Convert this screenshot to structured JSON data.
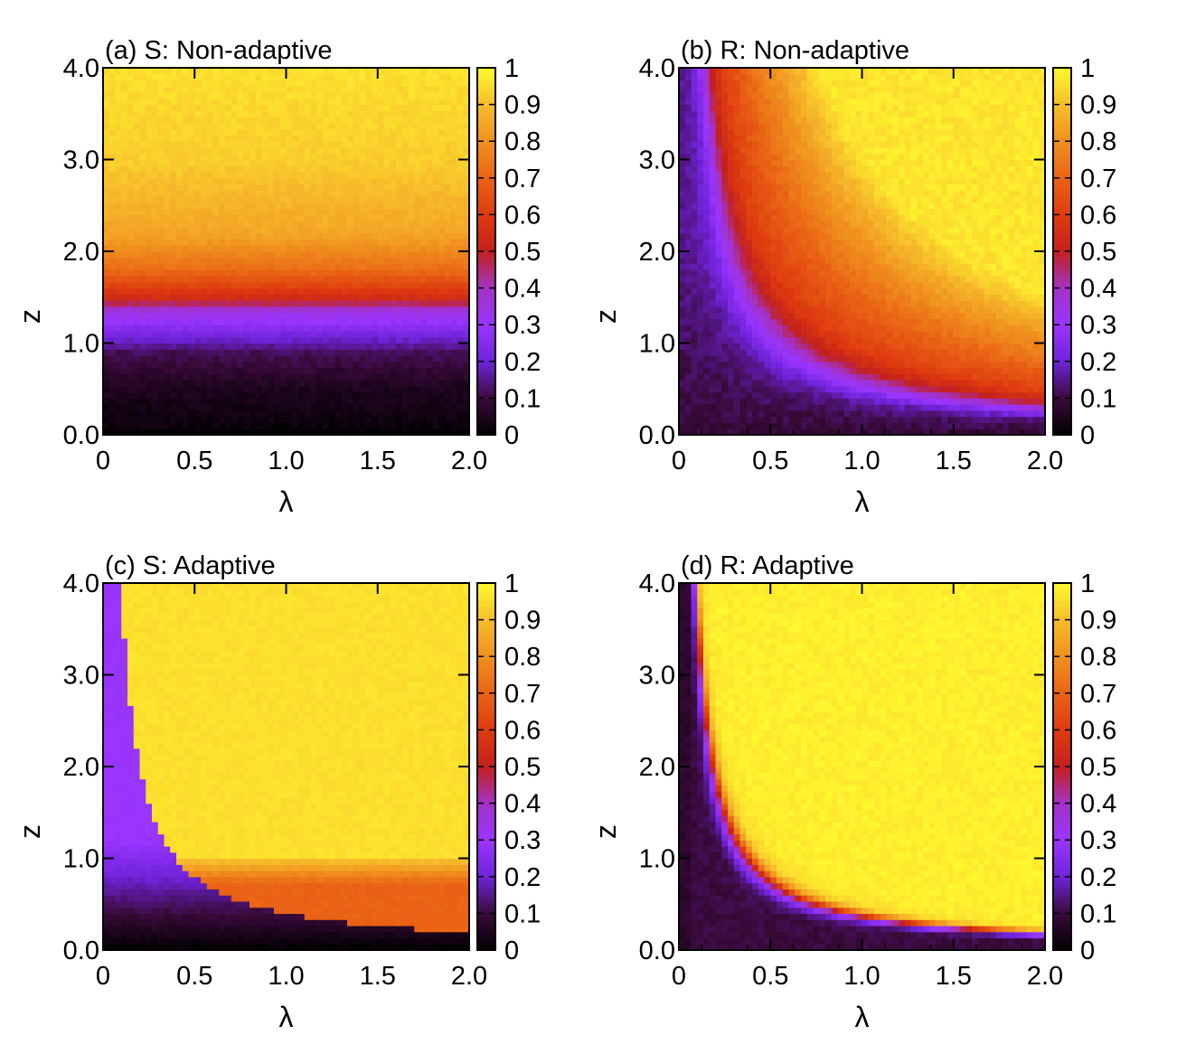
{
  "chart_data": [
    {
      "type": "heatmap",
      "title": "(a) S: Non-adaptive",
      "xlabel": "λ",
      "ylabel": "z",
      "xlim": [
        0,
        2.0
      ],
      "ylim": [
        0,
        4.0
      ],
      "xticks": [
        "0",
        "0.5",
        "1.0",
        "1.5",
        "2.0"
      ],
      "yticks": [
        "0.0",
        "1.0",
        "2.0",
        "3.0",
        "4.0"
      ],
      "colorbar": {
        "min": 0,
        "max": 1,
        "ticks": [
          "0",
          "0.1",
          "0.2",
          "0.3",
          "0.4",
          "0.5",
          "0.6",
          "0.7",
          "0.8",
          "0.9",
          "1"
        ]
      },
      "pattern": "horizontal-transition",
      "z_profile": [
        [
          0.0,
          0.0
        ],
        [
          0.1,
          0.02
        ],
        [
          0.5,
          0.05
        ],
        [
          0.9,
          0.12
        ],
        [
          1.15,
          0.25
        ],
        [
          1.35,
          0.35
        ],
        [
          1.5,
          0.55
        ],
        [
          1.8,
          0.72
        ],
        [
          2.2,
          0.85
        ],
        [
          3.0,
          0.93
        ],
        [
          4.0,
          0.96
        ]
      ]
    },
    {
      "type": "heatmap",
      "title": "(b) R: Non-adaptive",
      "xlabel": "λ",
      "ylabel": "z",
      "xlim": [
        0,
        2.0
      ],
      "ylim": [
        0,
        4.0
      ],
      "xticks": [
        "0",
        "0.5",
        "1.0",
        "1.5",
        "2.0"
      ],
      "yticks": [
        "0.0",
        "1.0",
        "2.0",
        "3.0",
        "4.0"
      ],
      "colorbar": {
        "min": 0,
        "max": 1,
        "ticks": [
          "0",
          "0.1",
          "0.2",
          "0.3",
          "0.4",
          "0.5",
          "0.6",
          "0.7",
          "0.8",
          "0.9",
          "1"
        ]
      },
      "pattern": "hyperbolic-boundary",
      "boundary_constant": 0.55,
      "low_value": 0.15,
      "high_value": 0.96
    },
    {
      "type": "heatmap",
      "title": "(c) S: Adaptive",
      "xlabel": "λ",
      "ylabel": "z",
      "xlim": [
        0,
        2.0
      ],
      "ylim": [
        0,
        4.0
      ],
      "xticks": [
        "0",
        "0.5",
        "1.0",
        "1.5",
        "2.0"
      ],
      "yticks": [
        "0.0",
        "1.0",
        "2.0",
        "3.0",
        "4.0"
      ],
      "colorbar": {
        "min": 0,
        "max": 1,
        "ticks": [
          "0",
          "0.1",
          "0.2",
          "0.3",
          "0.4",
          "0.5",
          "0.6",
          "0.7",
          "0.8",
          "0.9",
          "1"
        ]
      },
      "pattern": "adaptive-susceptible",
      "boundary_constant": 0.4
    },
    {
      "type": "heatmap",
      "title": "(d) R: Adaptive",
      "xlabel": "λ",
      "ylabel": "z",
      "xlim": [
        0,
        2.0
      ],
      "ylim": [
        0,
        4.0
      ],
      "xticks": [
        "0",
        "0.5",
        "1.0",
        "1.5",
        "2.0"
      ],
      "yticks": [
        "0.0",
        "1.0",
        "2.0",
        "3.0",
        "4.0"
      ],
      "colorbar": {
        "min": 0,
        "max": 1,
        "ticks": [
          "0",
          "0.1",
          "0.2",
          "0.3",
          "0.4",
          "0.5",
          "0.6",
          "0.7",
          "0.8",
          "0.9",
          "1"
        ]
      },
      "pattern": "hyperbolic-boundary-sharp",
      "boundary_constant": 0.4,
      "low_value": 0.1,
      "high_value": 0.985
    }
  ],
  "colormap": {
    "name": "gnuplot-like",
    "stops": [
      {
        "v": 0.0,
        "color": "#000000"
      },
      {
        "v": 0.1,
        "color": "#3a0a3a"
      },
      {
        "v": 0.2,
        "color": "#6f23d9"
      },
      {
        "v": 0.3,
        "color": "#9a35ff"
      },
      {
        "v": 0.4,
        "color": "#a332c7"
      },
      {
        "v": 0.5,
        "color": "#c3201e"
      },
      {
        "v": 0.6,
        "color": "#de3b0f"
      },
      {
        "v": 0.7,
        "color": "#ea6315"
      },
      {
        "v": 0.8,
        "color": "#f0901e"
      },
      {
        "v": 0.9,
        "color": "#f7bc2b"
      },
      {
        "v": 1.0,
        "color": "#fff82f"
      }
    ]
  }
}
